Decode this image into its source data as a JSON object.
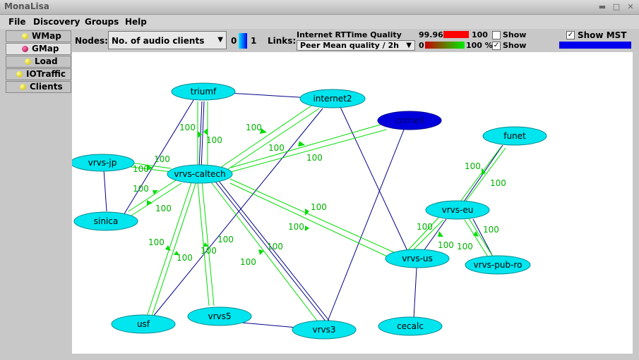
{
  "window": {
    "title": "MonaLisa"
  },
  "menu": [
    {
      "label": "File"
    },
    {
      "label": "Discovery"
    },
    {
      "label": "Groups"
    },
    {
      "label": "Help"
    }
  ],
  "tabs": [
    {
      "label": "WMap"
    },
    {
      "label": "GMap"
    },
    {
      "label": "Load"
    },
    {
      "label": "IOTraffic"
    },
    {
      "label": "Clients"
    }
  ],
  "toolbar": {
    "nodes_label": "Nodes:",
    "nodes_value": "No. of audio clients",
    "nodes_min": "0",
    "nodes_max": "1",
    "links_label": "Links:",
    "rtt_title": "Internet RTTime Quality",
    "rtt_min": "99.96",
    "rtt_max": "100",
    "show_label_1": "Show",
    "links_value": "Peer Mean quality / 2h",
    "peer_min": "0",
    "peer_max": "100 %",
    "show_label_2": "Show",
    "show_mst_label": "Show MST",
    "colors": {
      "rtt_bar": "#ff0000",
      "mst_bar": "#0000ee",
      "node": "#00e5ee",
      "selected_node": "#0000dd",
      "link_green": "#00dd00",
      "link_blue": "#00008b"
    }
  },
  "graph": {
    "nodes": [
      {
        "id": "triumf",
        "label": "triumf"
      },
      {
        "id": "internet2",
        "label": "internet2"
      },
      {
        "id": "cornell",
        "label": "cornell",
        "selected": true
      },
      {
        "id": "funet",
        "label": "funet"
      },
      {
        "id": "vrvs-jp",
        "label": "vrvs-jp"
      },
      {
        "id": "vrvs-caltech",
        "label": "vrvs-caltech"
      },
      {
        "id": "sinica",
        "label": "sinica"
      },
      {
        "id": "vrvs-eu",
        "label": "vrvs-eu"
      },
      {
        "id": "vrvs-us",
        "label": "vrvs-us"
      },
      {
        "id": "vrvs-pub-ro",
        "label": "vrvs-pub-ro"
      },
      {
        "id": "usf",
        "label": "usf"
      },
      {
        "id": "vrvs5",
        "label": "vrvs5"
      },
      {
        "id": "vrvs3",
        "label": "vrvs3"
      },
      {
        "id": "cecalc",
        "label": "cecalc"
      }
    ],
    "link_label": "100"
  }
}
